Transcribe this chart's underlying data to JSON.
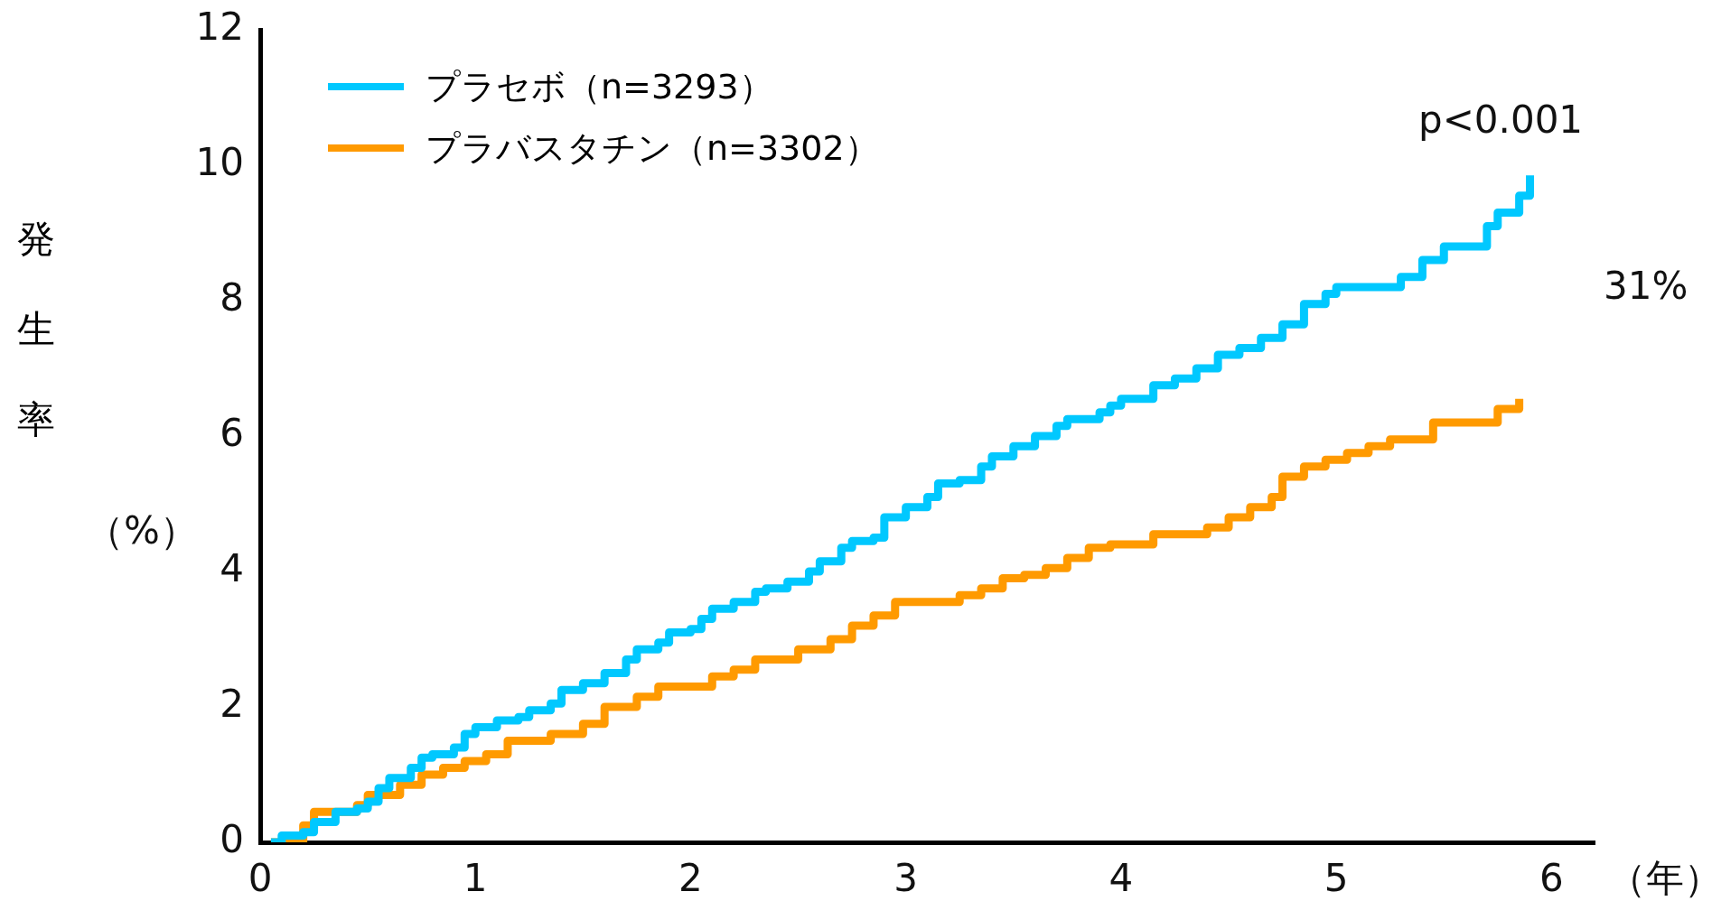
{
  "chart_data": {
    "type": "step",
    "ylabel": "発生率",
    "xlabel": "（年）",
    "legend": "top left",
    "xlim": [
      0,
      6.2
    ],
    "xticks": [
      0,
      1,
      2,
      3,
      4,
      5,
      6
    ],
    "ylim": [
      0,
      12
    ],
    "yticks": [
      0,
      2,
      4,
      6,
      8,
      10,
      12
    ],
    "annotations": [
      "（%）",
      "p<0.001",
      "31%"
    ],
    "series": [
      {
        "name": "プラセボ（n=3293）",
        "color": "#00c8ff",
        "x": [
          0.05,
          0.1,
          0.2,
          0.25,
          0.35,
          0.45,
          0.5,
          0.55,
          0.6,
          0.7,
          0.75,
          0.8,
          0.9,
          0.95,
          1.0,
          1.1,
          1.2,
          1.25,
          1.35,
          1.4,
          1.5,
          1.6,
          1.7,
          1.75,
          1.85,
          1.9,
          2.0,
          2.05,
          2.1,
          2.2,
          2.3,
          2.35,
          2.45,
          2.55,
          2.6,
          2.7,
          2.75,
          2.85,
          2.9,
          3.0,
          3.1,
          3.15,
          3.25,
          3.35,
          3.4,
          3.5,
          3.6,
          3.7,
          3.75,
          3.9,
          3.95,
          4.0,
          4.15,
          4.25,
          4.35,
          4.45,
          4.55,
          4.65,
          4.75,
          4.85,
          4.95,
          5.0,
          5.3,
          5.4,
          5.5,
          5.7,
          5.75,
          5.85,
          5.9
        ],
        "values": [
          0,
          0.1,
          0.15,
          0.3,
          0.45,
          0.5,
          0.6,
          0.8,
          0.95,
          1.1,
          1.25,
          1.3,
          1.4,
          1.6,
          1.7,
          1.8,
          1.85,
          1.95,
          2.05,
          2.25,
          2.35,
          2.5,
          2.7,
          2.85,
          2.95,
          3.1,
          3.15,
          3.3,
          3.45,
          3.55,
          3.7,
          3.75,
          3.85,
          4.0,
          4.15,
          4.35,
          4.45,
          4.5,
          4.8,
          4.95,
          5.1,
          5.3,
          5.35,
          5.55,
          5.7,
          5.85,
          6.0,
          6.15,
          6.25,
          6.35,
          6.45,
          6.55,
          6.75,
          6.85,
          7.0,
          7.2,
          7.3,
          7.45,
          7.65,
          7.95,
          8.1,
          8.2,
          8.35,
          8.6,
          8.8,
          9.1,
          9.3,
          9.55,
          9.85
        ]
      },
      {
        "name": "プラバスタチン（n=3302）",
        "color": "#ff9a00",
        "x": [
          0.05,
          0.2,
          0.25,
          0.45,
          0.5,
          0.65,
          0.75,
          0.85,
          0.95,
          1.05,
          1.15,
          1.35,
          1.5,
          1.6,
          1.75,
          1.85,
          2.1,
          2.2,
          2.3,
          2.5,
          2.65,
          2.75,
          2.85,
          2.95,
          3.25,
          3.35,
          3.45,
          3.55,
          3.65,
          3.75,
          3.85,
          3.95,
          4.15,
          4.4,
          4.5,
          4.6,
          4.7,
          4.75,
          4.85,
          4.95,
          5.05,
          5.15,
          5.25,
          5.45,
          5.75,
          5.85
        ],
        "values": [
          0,
          0.25,
          0.45,
          0.55,
          0.7,
          0.85,
          1.0,
          1.1,
          1.2,
          1.3,
          1.5,
          1.6,
          1.75,
          2.0,
          2.15,
          2.3,
          2.45,
          2.55,
          2.7,
          2.85,
          3.0,
          3.2,
          3.35,
          3.55,
          3.65,
          3.75,
          3.9,
          3.95,
          4.05,
          4.2,
          4.35,
          4.4,
          4.55,
          4.65,
          4.8,
          4.95,
          5.1,
          5.4,
          5.55,
          5.65,
          5.75,
          5.85,
          5.95,
          6.2,
          6.4,
          6.55
        ]
      }
    ]
  }
}
